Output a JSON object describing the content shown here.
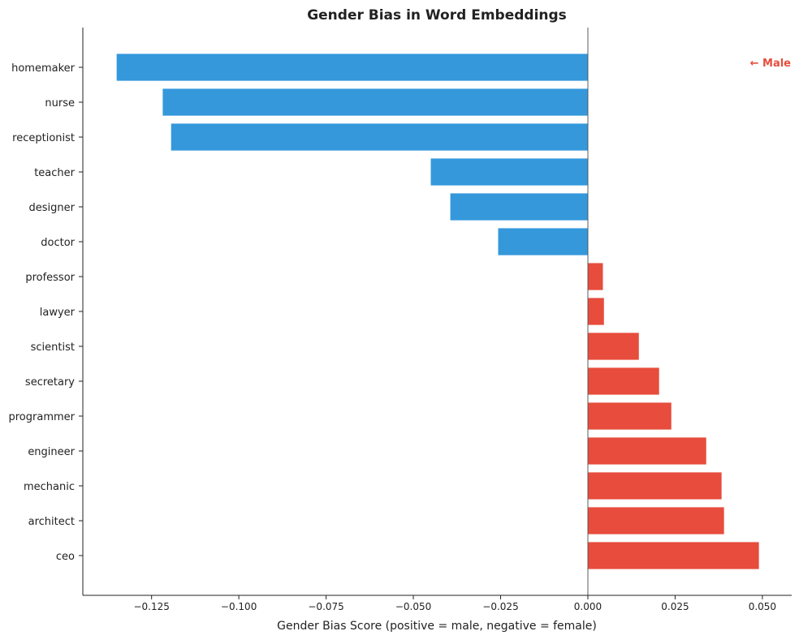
{
  "chart_data": {
    "type": "bar",
    "orientation": "horizontal",
    "title": "Gender Bias in Word Embeddings",
    "xlabel": "Gender Bias Score (positive = male, negative = female)",
    "ylabel": "",
    "xlim": [
      -0.1447,
      0.0584
    ],
    "xticks": [
      -0.125,
      -0.1,
      -0.075,
      -0.05,
      -0.025,
      0.0,
      0.025,
      0.05
    ],
    "xtick_labels": [
      "−0.125",
      "−0.100",
      "−0.075",
      "−0.050",
      "−0.025",
      "0.000",
      "0.025",
      "0.050"
    ],
    "categories": [
      "homemaker",
      "nurse",
      "receptionist",
      "teacher",
      "designer",
      "doctor",
      "professor",
      "lawyer",
      "scientist",
      "secretary",
      "programmer",
      "engineer",
      "mechanic",
      "architect",
      "ceo"
    ],
    "values": [
      -0.1351,
      -0.1219,
      -0.1195,
      -0.0451,
      -0.0395,
      -0.0258,
      0.0044,
      0.0047,
      0.0147,
      0.0205,
      0.024,
      0.034,
      0.0384,
      0.0391,
      0.0491
    ],
    "colors": {
      "negative": "#3498db",
      "positive": "#e74c3c"
    },
    "annotation": "← Male",
    "grid": false
  }
}
